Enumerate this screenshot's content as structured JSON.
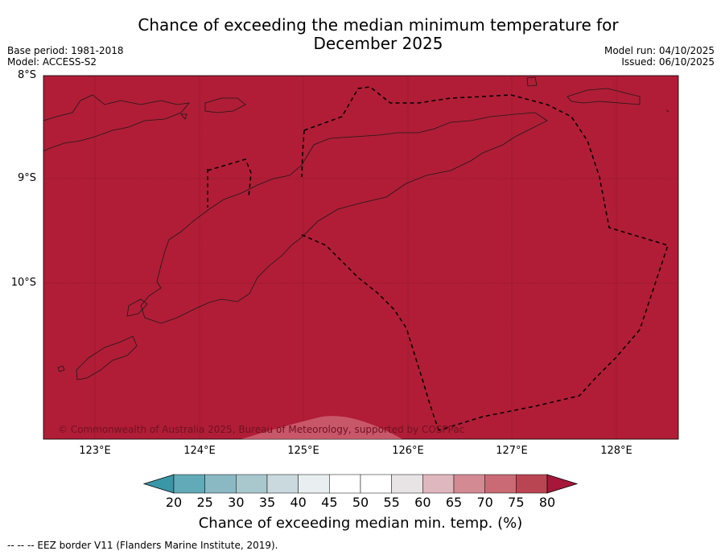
{
  "title_line1": "Chance of exceeding the median minimum temperature for",
  "title_line2": "December 2025",
  "meta_left": {
    "base_period": "Base period: 1981-2018",
    "model": "Model: ACCESS-S2"
  },
  "meta_right": {
    "model_run": "Model run: 04/10/2025",
    "issued": "Issued: 06/10/2025"
  },
  "colors": {
    "ocean_land": "#B11D36",
    "coast": "#1a1a1a",
    "grid": "#5a0f18",
    "watermark": "#e6a0ab"
  },
  "lat_labels": [
    "8°S",
    "9°S",
    "10°S"
  ],
  "lon_labels": [
    "123°E",
    "124°E",
    "125°E",
    "126°E",
    "127°E",
    "128°E"
  ],
  "copyright": "© Commonwealth of Australia 2025, Bureau of Meteorology, supported by COSPPac",
  "colorbar": {
    "label": "Chance of exceeding median min. temp. (%)",
    "ticks": [
      "20",
      "25",
      "30",
      "35",
      "40",
      "45",
      "50",
      "55",
      "60",
      "65",
      "70",
      "75",
      "80"
    ],
    "colors": [
      "#3a97a6",
      "#62aab8",
      "#8ab9c4",
      "#a9c8cd",
      "#c9d9dd",
      "#e9eff1",
      "#ffffff",
      "#ffffff",
      "#e8e4e6",
      "#dfb7be",
      "#d48a93",
      "#c96a74",
      "#ba4552",
      "#a8173a"
    ]
  },
  "footer": "--  --  -- EEZ border V11 (Flanders Marine Institute, 2019)."
}
